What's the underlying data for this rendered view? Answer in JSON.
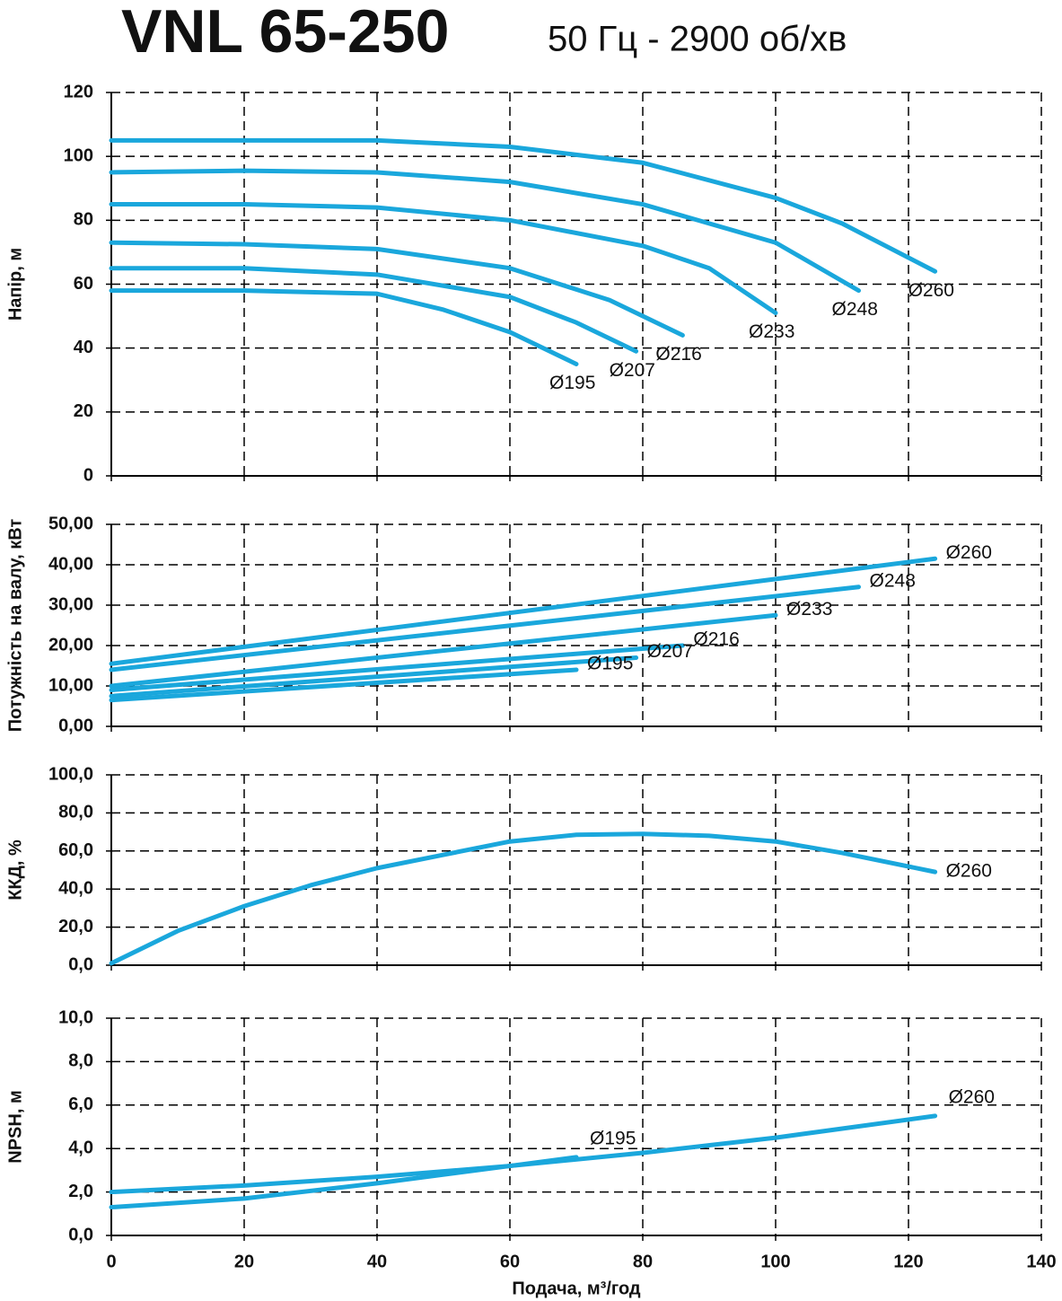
{
  "title": "VNL 65-250",
  "subtitle": "50 Гц - 2900 об/хв",
  "chart_data": [
    {
      "type": "line",
      "ylabel": "Напір, м",
      "xlim": [
        0,
        140
      ],
      "xticks": [
        0,
        20,
        40,
        60,
        80,
        100,
        120,
        140
      ],
      "xtick_labels": false,
      "ylim": [
        0,
        120
      ],
      "yticks": [
        0,
        20,
        40,
        60,
        80,
        100,
        120
      ],
      "grid": true,
      "series": [
        {
          "name": "Ø260",
          "color": "#1aa7dc",
          "x": [
            0,
            20,
            40,
            60,
            80,
            100,
            110,
            124
          ],
          "values": [
            105,
            105,
            105,
            103,
            98,
            87,
            79,
            64
          ]
        },
        {
          "name": "Ø248",
          "color": "#1aa7dc",
          "x": [
            0,
            20,
            40,
            60,
            80,
            100,
            112.5
          ],
          "values": [
            95,
            95.5,
            95,
            92,
            85,
            73,
            58
          ]
        },
        {
          "name": "Ø233",
          "color": "#1aa7dc",
          "x": [
            0,
            20,
            40,
            60,
            80,
            90,
            100
          ],
          "values": [
            85,
            85,
            84,
            80,
            72,
            65,
            51
          ]
        },
        {
          "name": "Ø216",
          "color": "#1aa7dc",
          "x": [
            0,
            20,
            40,
            60,
            75,
            86
          ],
          "values": [
            73,
            72.5,
            71,
            65,
            55,
            44
          ]
        },
        {
          "name": "Ø207",
          "color": "#1aa7dc",
          "x": [
            0,
            20,
            40,
            60,
            70,
            79
          ],
          "values": [
            65,
            65,
            63,
            56,
            48,
            39
          ]
        },
        {
          "name": "Ø195",
          "color": "#1aa7dc",
          "x": [
            0,
            20,
            40,
            50,
            60,
            70
          ],
          "values": [
            58,
            58,
            57,
            52,
            45,
            35
          ]
        }
      ]
    },
    {
      "type": "line",
      "ylabel": "Потужність на валу, кВт",
      "xlim": [
        0,
        140
      ],
      "xticks": [
        0,
        20,
        40,
        60,
        80,
        100,
        120,
        140
      ],
      "xtick_labels": false,
      "ylim": [
        0,
        50
      ],
      "yticks": [
        {
          "value": 0,
          "label": "0,00"
        },
        {
          "value": 10,
          "label": "10,00"
        },
        {
          "value": 20,
          "label": "20,00"
        },
        {
          "value": 30,
          "label": "30,00"
        },
        {
          "value": 40,
          "label": "40,00"
        },
        {
          "value": 50,
          "label": "50,00"
        }
      ],
      "grid": true,
      "series": [
        {
          "name": "Ø260",
          "color": "#1aa7dc",
          "x": [
            0,
            124
          ],
          "values": [
            15.5,
            41.5
          ]
        },
        {
          "name": "Ø248",
          "color": "#1aa7dc",
          "x": [
            0,
            112.5
          ],
          "values": [
            14,
            34.5
          ]
        },
        {
          "name": "Ø233",
          "color": "#1aa7dc",
          "x": [
            0,
            100
          ],
          "values": [
            10,
            27.5
          ]
        },
        {
          "name": "Ø216",
          "color": "#1aa7dc",
          "x": [
            0,
            86
          ],
          "values": [
            9,
            20
          ]
        },
        {
          "name": "Ø207",
          "color": "#1aa7dc",
          "x": [
            0,
            79
          ],
          "values": [
            7.5,
            17
          ]
        },
        {
          "name": "Ø195",
          "color": "#1aa7dc",
          "x": [
            0,
            70
          ],
          "values": [
            6.5,
            14
          ]
        }
      ]
    },
    {
      "type": "line",
      "ylabel": "ККД, %",
      "xlim": [
        0,
        140
      ],
      "xticks": [
        0,
        20,
        40,
        60,
        80,
        100,
        120,
        140
      ],
      "xtick_labels": false,
      "ylim": [
        0,
        100
      ],
      "yticks": [
        {
          "value": 0,
          "label": "0,0"
        },
        {
          "value": 20,
          "label": "20,0"
        },
        {
          "value": 40,
          "label": "40,0"
        },
        {
          "value": 60,
          "label": "60,0"
        },
        {
          "value": 80,
          "label": "80,0"
        },
        {
          "value": 100,
          "label": "100,0"
        }
      ],
      "grid": true,
      "series": [
        {
          "name": "Ø260",
          "color": "#1aa7dc",
          "x": [
            0,
            10,
            20,
            30,
            40,
            50,
            60,
            70,
            80,
            90,
            100,
            110,
            124
          ],
          "values": [
            1,
            18,
            31,
            42,
            51,
            58,
            65,
            68.5,
            69,
            68,
            65,
            59,
            49
          ]
        }
      ]
    },
    {
      "type": "line",
      "ylabel": "NPSH, м",
      "xlabel": "Подача, м³/год",
      "xlim": [
        0,
        140
      ],
      "xticks": [
        0,
        20,
        40,
        60,
        80,
        100,
        120,
        140
      ],
      "xtick_labels": true,
      "ylim": [
        0,
        10
      ],
      "yticks": [
        {
          "value": 0,
          "label": "0,0"
        },
        {
          "value": 2,
          "label": "2,0"
        },
        {
          "value": 4,
          "label": "4,0"
        },
        {
          "value": 6,
          "label": "6,0"
        },
        {
          "value": 8,
          "label": "8,0"
        },
        {
          "value": 10,
          "label": "10,0"
        }
      ],
      "grid": true,
      "series": [
        {
          "name": "Ø260",
          "color": "#1aa7dc",
          "x": [
            0,
            20,
            40,
            60,
            80,
            100,
            124
          ],
          "values": [
            2,
            2.3,
            2.7,
            3.2,
            3.8,
            4.5,
            5.5
          ]
        },
        {
          "name": "Ø195",
          "color": "#1aa7dc",
          "x": [
            0,
            20,
            40,
            60,
            70
          ],
          "values": [
            1.3,
            1.7,
            2.4,
            3.2,
            3.6
          ]
        }
      ]
    }
  ]
}
